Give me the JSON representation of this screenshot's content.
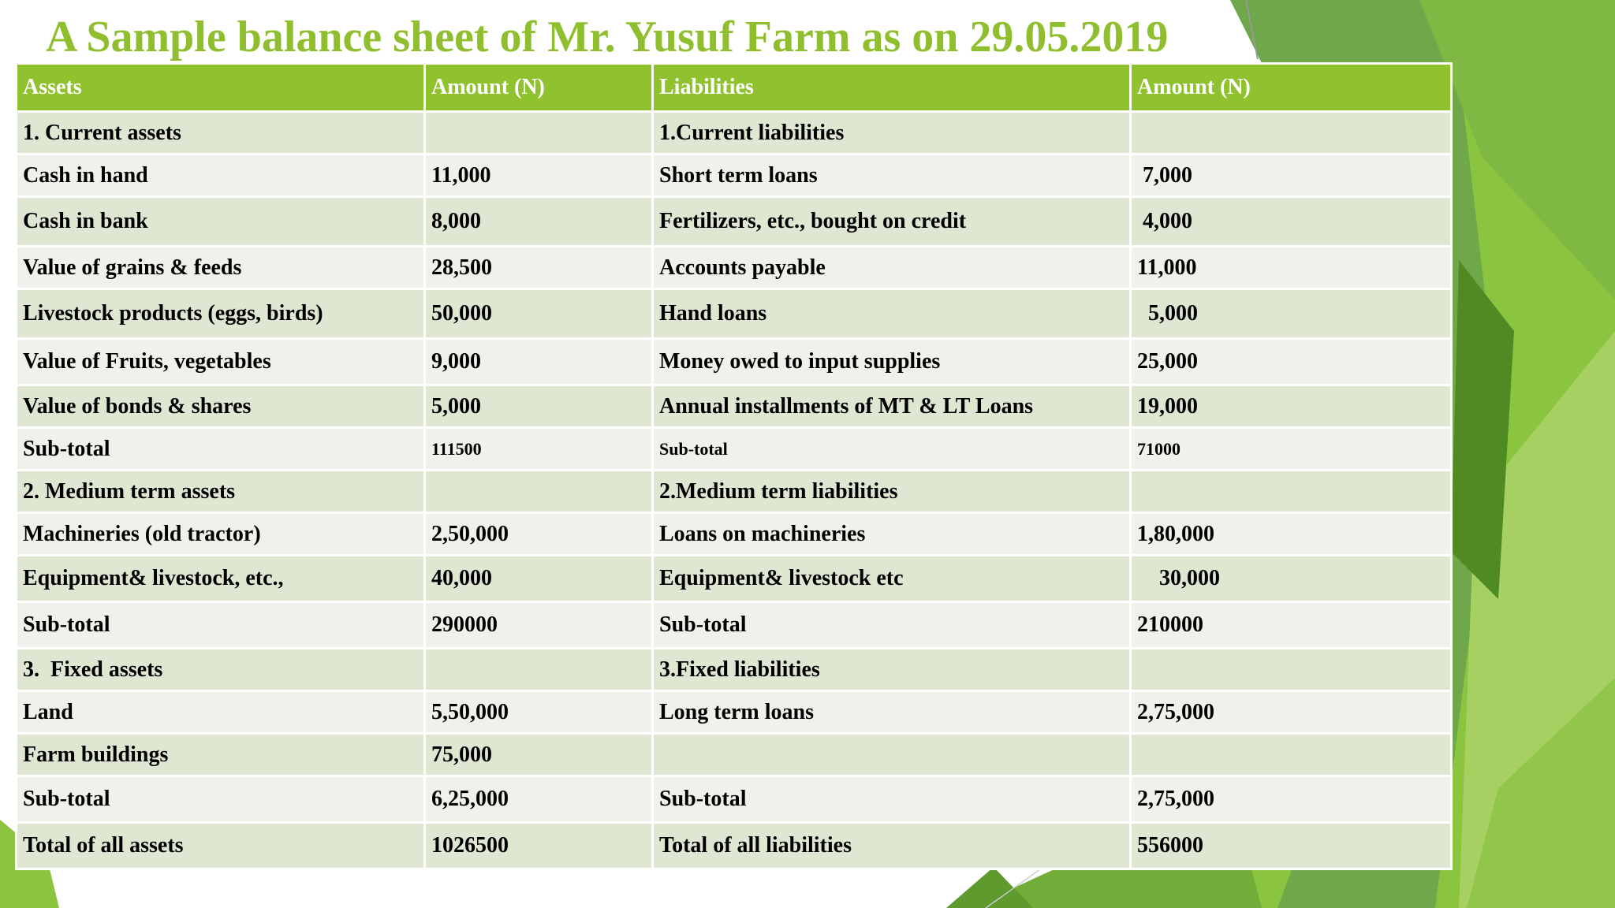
{
  "title": "A Sample balance sheet of Mr. Yusuf Farm as on 29.05.2019",
  "colors": {
    "title": "#8fbe2f",
    "header_bg": "#8fc22e",
    "row_dark": "#dfe7d3",
    "row_light": "#eef2ea"
  },
  "table": {
    "headers": [
      "Assets",
      "Amount (N)",
      "Liabilities",
      "Amount (N)"
    ],
    "rows": [
      [
        "1. Current assets",
        "",
        "1.Current liabilities",
        ""
      ],
      [
        "Cash in hand",
        "11,000",
        "Short term loans",
        " 7,000"
      ],
      [
        "Cash in bank",
        "8,000",
        "Fertilizers, etc., bought on credit",
        " 4,000"
      ],
      [
        "Value of grains & feeds",
        "28,500",
        "Accounts payable",
        "11,000"
      ],
      [
        "Livestock products (eggs, birds)",
        "50,000",
        "Hand loans",
        "  5,000"
      ],
      [
        "Value of Fruits, vegetables",
        "9,000",
        "Money owed to input supplies",
        "25,000"
      ],
      [
        "Value of bonds & shares",
        "5,000",
        "Annual installments of MT & LT Loans",
        "19,000"
      ],
      [
        "Sub-total",
        "111500",
        "Sub-total",
        "71000"
      ],
      [
        "2. Medium term assets",
        "",
        "2.Medium term liabilities",
        ""
      ],
      [
        "Machineries (old tractor)",
        "2,50,000",
        "Loans on machineries",
        "1,80,000"
      ],
      [
        "Equipment& livestock, etc.,",
        "40,000",
        "Equipment& livestock etc",
        "    30,000"
      ],
      [
        "Sub-total",
        "290000",
        "Sub-total",
        "210000"
      ],
      [
        "3.  Fixed assets",
        "",
        "3.Fixed liabilities",
        ""
      ],
      [
        "Land",
        "5,50,000",
        "Long term loans",
        "2,75,000"
      ],
      [
        "Farm buildings",
        "75,000",
        "",
        ""
      ],
      [
        "Sub-total",
        "6,25,000",
        "Sub-total",
        "2,75,000"
      ],
      [
        "Total of all assets",
        "1026500",
        "Total of all liabilities",
        "556000"
      ]
    ]
  }
}
